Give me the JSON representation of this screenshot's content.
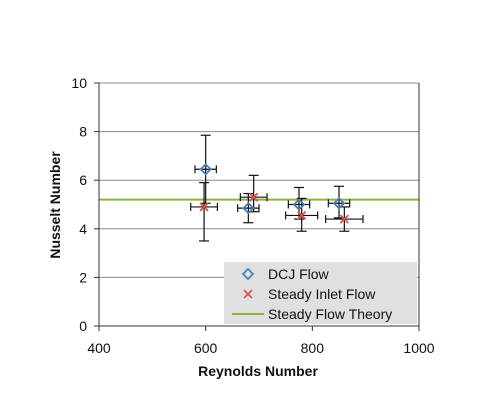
{
  "chart_data": {
    "type": "scatter",
    "xlabel": "Reynolds Number",
    "ylabel": "Nusselt Number",
    "xlim": [
      400,
      1000
    ],
    "ylim": [
      0,
      10
    ],
    "x_ticks": [
      400,
      600,
      800,
      1000
    ],
    "y_ticks": [
      0,
      2,
      4,
      6,
      8,
      10
    ],
    "grid": "horizontal",
    "legend_position": "bottom-right",
    "series": [
      {
        "name": "DCJ Flow",
        "marker": "diamond",
        "color": "#4a7ebb",
        "points": [
          {
            "x": 600,
            "y": 6.45,
            "xerr": 20,
            "yerr_low": 1.4,
            "yerr_high": 1.4
          },
          {
            "x": 680,
            "y": 4.85,
            "xerr": 20,
            "yerr_low": 0.6,
            "yerr_high": 0.6
          },
          {
            "x": 775,
            "y": 5.0,
            "xerr": 20,
            "yerr_low": 0.6,
            "yerr_high": 0.7
          },
          {
            "x": 850,
            "y": 5.05,
            "xerr": 20,
            "yerr_low": 0.6,
            "yerr_high": 0.7
          }
        ]
      },
      {
        "name": "Steady Inlet Flow",
        "marker": "x",
        "color": "#d9534f",
        "points": [
          {
            "x": 597,
            "y": 4.9,
            "xerr": 25,
            "yerr_low": 1.4,
            "yerr_high": 1.0
          },
          {
            "x": 690,
            "y": 5.3,
            "xerr": 25,
            "yerr_low": 0.6,
            "yerr_high": 0.9
          },
          {
            "x": 780,
            "y": 4.55,
            "xerr": 30,
            "yerr_low": 0.65,
            "yerr_high": 0.7
          },
          {
            "x": 860,
            "y": 4.4,
            "xerr": 35,
            "yerr_low": 0.5,
            "yerr_high": 0.5
          }
        ]
      },
      {
        "name": "Steady Flow Theory",
        "type": "line",
        "color": "#8db33a",
        "y": 5.2
      }
    ]
  }
}
